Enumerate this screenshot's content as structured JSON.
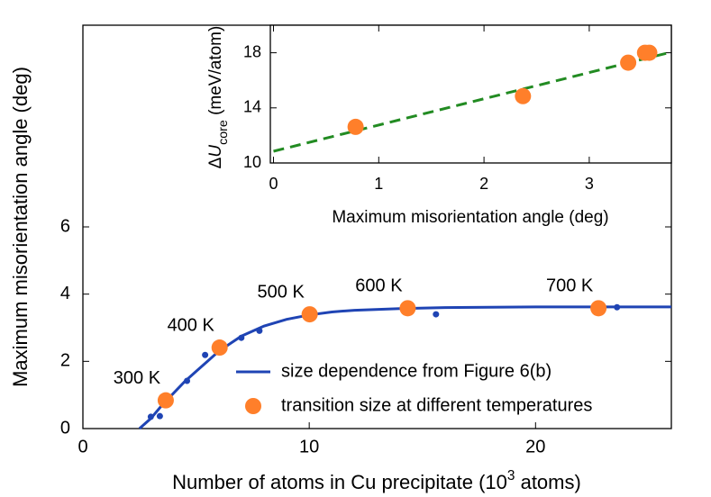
{
  "chart_data": [
    {
      "type": "scatter",
      "xlabel": {
        "text": "Number of atoms in Cu precipitate (10",
        "sup": "3",
        "tail": " atoms)"
      },
      "ylabel": "Maximum misorientation angle (deg)",
      "xlim": [
        0,
        26
      ],
      "ylim": [
        0,
        12
      ],
      "xticks": [
        0,
        10,
        20
      ],
      "yticks": [
        0,
        2,
        4,
        6
      ],
      "legend": "lower right",
      "annotations": [
        "300 K",
        "400 K",
        "500 K",
        "600 K",
        "700 K"
      ],
      "series": [
        {
          "name": "size dependence from Figure 6(b)",
          "style": "line",
          "color": "#1f44b4",
          "x": [
            2.5,
            3,
            3.5,
            4,
            4.5,
            5,
            5.5,
            6,
            7,
            8,
            9,
            10,
            11,
            12,
            14,
            16,
            20,
            26
          ],
          "y": [
            0,
            0.3,
            0.7,
            1.05,
            1.4,
            1.7,
            2.0,
            2.3,
            2.75,
            3.05,
            3.25,
            3.38,
            3.47,
            3.52,
            3.57,
            3.6,
            3.62,
            3.62
          ]
        },
        {
          "style": "dots",
          "color": "#1f44b4",
          "x": [
            3.0,
            3.4,
            4.6,
            5.4,
            7.0,
            7.8,
            15.6,
            23.6
          ],
          "y": [
            0.35,
            0.37,
            1.42,
            2.19,
            2.7,
            2.91,
            3.4,
            3.61
          ]
        },
        {
          "name": "transition size at different temperatures",
          "style": "circles",
          "color": "#ff7f2a",
          "x": [
            3.66,
            6.04,
            10.02,
            14.35,
            22.78
          ],
          "y": [
            0.84,
            2.41,
            3.4,
            3.58,
            3.58
          ]
        }
      ]
    },
    {
      "type": "scatter",
      "xlabel": {
        "text": "Maximum misorientation angle (deg)"
      },
      "ylabel": {
        "prefix": "Δ",
        "symbol": "U",
        "sub": "core",
        "tail": " (meV/atom)"
      },
      "xlim": [
        -0.03,
        3.78
      ],
      "ylim": [
        10,
        20
      ],
      "xticks": [
        0,
        1,
        2,
        3
      ],
      "yticks": [
        10,
        14,
        18
      ],
      "series": [
        {
          "style": "dashed",
          "color": "#228b22",
          "x": [
            0,
            3.78
          ],
          "y": [
            10.85,
            18.05
          ]
        },
        {
          "style": "circles",
          "color": "#ff7f2a",
          "x": [
            0.78,
            2.37,
            3.37,
            3.53,
            3.57
          ],
          "y": [
            12.62,
            14.85,
            17.28,
            18.0,
            18.0
          ]
        }
      ]
    }
  ]
}
